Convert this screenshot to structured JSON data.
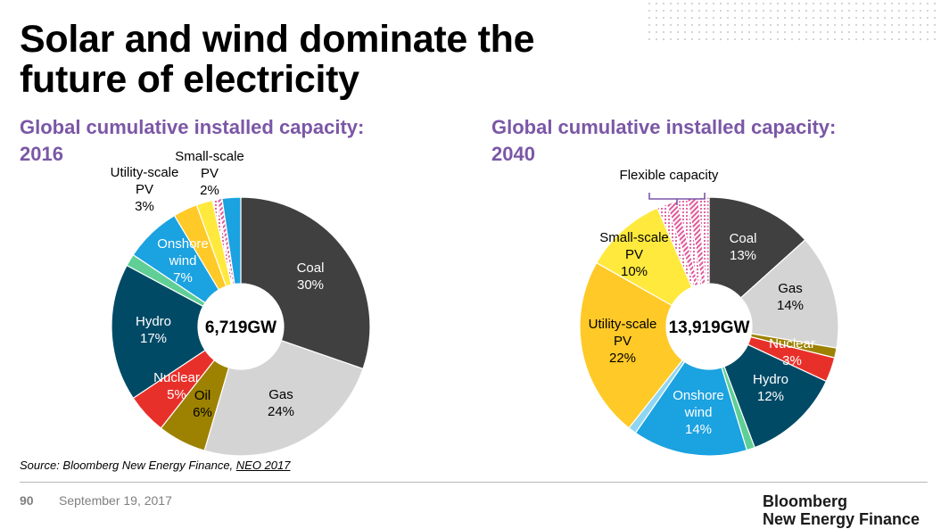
{
  "slide": {
    "title_line1": "Solar and wind dominate the",
    "title_line2": "future of electricity",
    "source_text": "Source: Bloomberg New Energy Finance, ",
    "source_link": "NEO 2017",
    "page_number": "90",
    "date": "September 19, 2017",
    "brand_line1": "Bloomberg",
    "brand_line2": "New Energy Finance"
  },
  "colors": {
    "subtitle": "#7b57a6",
    "coal": "#404040",
    "gas": "#d4d4d4",
    "oil": "#9c8200",
    "nuclear": "#e8302a",
    "hydro": "#004a66",
    "other": "#5fcf95",
    "onshore_wind": "#1ba2e0",
    "offshore_wind": "#8fd6f2",
    "utility_pv": "#ffc927",
    "small_pv": "#ffe93d",
    "flexible": "#e0589a"
  },
  "chart_data": [
    {
      "type": "pie",
      "subtitle_line1": "Global cumulative installed capacity:",
      "subtitle_line2": "2016",
      "center_label": "6,719GW",
      "slices": [
        {
          "key": "coal",
          "label_lines": [
            "Coal",
            "30%"
          ],
          "value": 30,
          "color": "#404040"
        },
        {
          "key": "gas",
          "label_lines": [
            "Gas",
            "24%"
          ],
          "value": 24,
          "color": "#d4d4d4"
        },
        {
          "key": "oil",
          "label_lines": [
            "Oil",
            "6%"
          ],
          "value": 6,
          "color": "#9c8200"
        },
        {
          "key": "nuclear",
          "label_lines": [
            "Nuclear",
            "5%"
          ],
          "value": 5,
          "color": "#e8302a"
        },
        {
          "key": "hydro",
          "label_lines": [
            "Hydro",
            "17%"
          ],
          "value": 17,
          "color": "#004a66"
        },
        {
          "key": "other-renewables",
          "label_lines": [],
          "value": 1.5,
          "color": "#5fcf95"
        },
        {
          "key": "onshore-wind",
          "label_lines": [
            "Onshore",
            "wind",
            "7%"
          ],
          "value": 7,
          "color": "#1ba2e0"
        },
        {
          "key": "utility-pv",
          "label_lines": [
            "Utility-scale",
            "PV",
            "3%"
          ],
          "value": 3,
          "color": "#ffc927"
        },
        {
          "key": "small-pv",
          "label_lines": [
            "Small-scale",
            "PV",
            "2%"
          ],
          "value": 2,
          "color": "#ffe93d"
        },
        {
          "key": "flexible-1",
          "label_lines": [],
          "value": 0.6,
          "color": "#e0589a",
          "pattern": "dots"
        },
        {
          "key": "flexible-2",
          "label_lines": [],
          "value": 0.6,
          "color": "#e0589a",
          "pattern": "stripes"
        },
        {
          "key": "other-blue",
          "label_lines": [],
          "value": 2.3,
          "color": "#1ba2e0"
        }
      ]
    },
    {
      "type": "pie",
      "subtitle_line1": "Global cumulative installed capacity:",
      "subtitle_line2": "2040",
      "center_label": "13,919GW",
      "annotation": "Flexible capacity",
      "slices": [
        {
          "key": "coal",
          "label_lines": [
            "Coal",
            "13%"
          ],
          "value": 13,
          "color": "#404040"
        },
        {
          "key": "gas",
          "label_lines": [
            "Gas",
            "14%"
          ],
          "value": 14,
          "color": "#d4d4d4"
        },
        {
          "key": "oil",
          "label_lines": [],
          "value": 1.2,
          "color": "#9c8200"
        },
        {
          "key": "nuclear",
          "label_lines": [
            "Nuclear",
            "3%"
          ],
          "value": 3,
          "color": "#e8302a"
        },
        {
          "key": "hydro",
          "label_lines": [
            "Hydro",
            "12%"
          ],
          "value": 12,
          "color": "#004a66"
        },
        {
          "key": "other-renewables",
          "label_lines": [],
          "value": 1,
          "color": "#5fcf95"
        },
        {
          "key": "onshore-wind",
          "label_lines": [
            "Onshore",
            "wind",
            "14%"
          ],
          "value": 14,
          "color": "#1ba2e0"
        },
        {
          "key": "offshore-wind",
          "label_lines": [],
          "value": 1,
          "color": "#8fd6f2"
        },
        {
          "key": "utility-pv",
          "label_lines": [
            "Utility-scale",
            "PV",
            "22%"
          ],
          "value": 22,
          "color": "#ffc927"
        },
        {
          "key": "small-pv",
          "label_lines": [
            "Small-scale",
            "PV",
            "10%"
          ],
          "value": 10,
          "color": "#ffe93d"
        },
        {
          "key": "flexible-1",
          "label_lines": [],
          "value": 1.2,
          "color": "#e0589a",
          "pattern": "dots"
        },
        {
          "key": "flexible-2",
          "label_lines": [],
          "value": 1.3,
          "color": "#e0589a",
          "pattern": "stripes"
        },
        {
          "key": "flexible-3",
          "label_lines": [],
          "value": 1.3,
          "color": "#e0589a",
          "pattern": "dots"
        },
        {
          "key": "flexible-4",
          "label_lines": [],
          "value": 1.3,
          "color": "#e0589a",
          "pattern": "stripes"
        },
        {
          "key": "flexible-5",
          "label_lines": [],
          "value": 1.3,
          "color": "#e0589a",
          "pattern": "dots"
        }
      ]
    }
  ]
}
